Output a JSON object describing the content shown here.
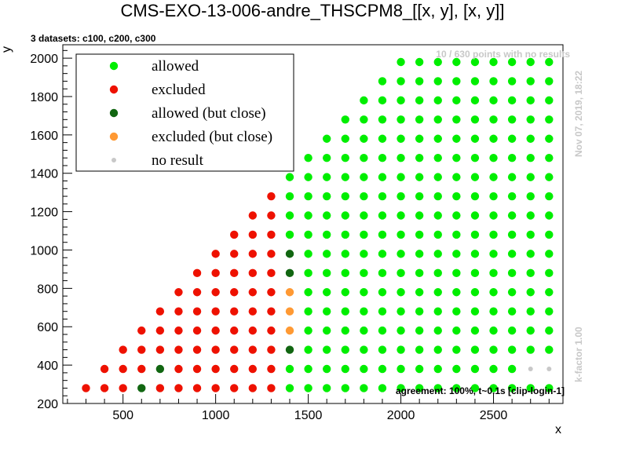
{
  "chart_data": {
    "type": "scatter",
    "title": "CMS-EXO-13-006-andre_THSCPM8_[[x, y], [x, y]]",
    "subtitle": "3 datasets: c100, c200, c300",
    "xlabel": "x",
    "ylabel": "y",
    "xlim": [
      175,
      2875
    ],
    "ylim": [
      200,
      2070
    ],
    "xticks": [
      500,
      1000,
      1500,
      2000,
      2500
    ],
    "yticks": [
      200,
      400,
      600,
      800,
      1000,
      1200,
      1400,
      1600,
      1800,
      2000
    ],
    "annotations": {
      "no_result_count": "10 / 630 points with no results",
      "timestamp": "Nov 07, 2019, 18:22",
      "kfactor": "k-factor 1.00",
      "agreement": "agreement: 100%, t~0.1s [clip-login-1]"
    },
    "legend": {
      "placement": "top-left",
      "entries": [
        {
          "label": "allowed",
          "color": "#00ee00"
        },
        {
          "label": "excluded",
          "color": "#ee1100"
        },
        {
          "label": "allowed (but close)",
          "color": "#116611"
        },
        {
          "label": "excluded (but close)",
          "color": "#ff9933"
        },
        {
          "label": "no result",
          "color": "#c8c8c8"
        }
      ]
    },
    "grid_rule": {
      "x_step": 100,
      "y_step": 100,
      "y_values_offset": 80,
      "x_range": [
        300,
        2800
      ],
      "y_range": [
        280,
        1980
      ],
      "constraint": "y <= x - 20"
    },
    "series": [
      {
        "name": "excluded",
        "color": "#ee1100",
        "description": "all points with x <= 1300 except listed overrides"
      },
      {
        "name": "allowed (but close)",
        "color": "#116611",
        "points": [
          [
            600,
            280
          ],
          [
            700,
            380
          ],
          [
            1400,
            480
          ],
          [
            1400,
            880
          ],
          [
            1400,
            980
          ]
        ]
      },
      {
        "name": "excluded (but close)",
        "color": "#ff9933",
        "points": [
          [
            1400,
            580
          ],
          [
            1400,
            680
          ],
          [
            1400,
            780
          ]
        ]
      },
      {
        "name": "no result",
        "color": "#c8c8c8",
        "points": [
          [
            2700,
            380
          ],
          [
            2800,
            380
          ]
        ]
      },
      {
        "name": "allowed",
        "color": "#00ee00",
        "description": "all remaining points with x >= 1400"
      }
    ]
  }
}
